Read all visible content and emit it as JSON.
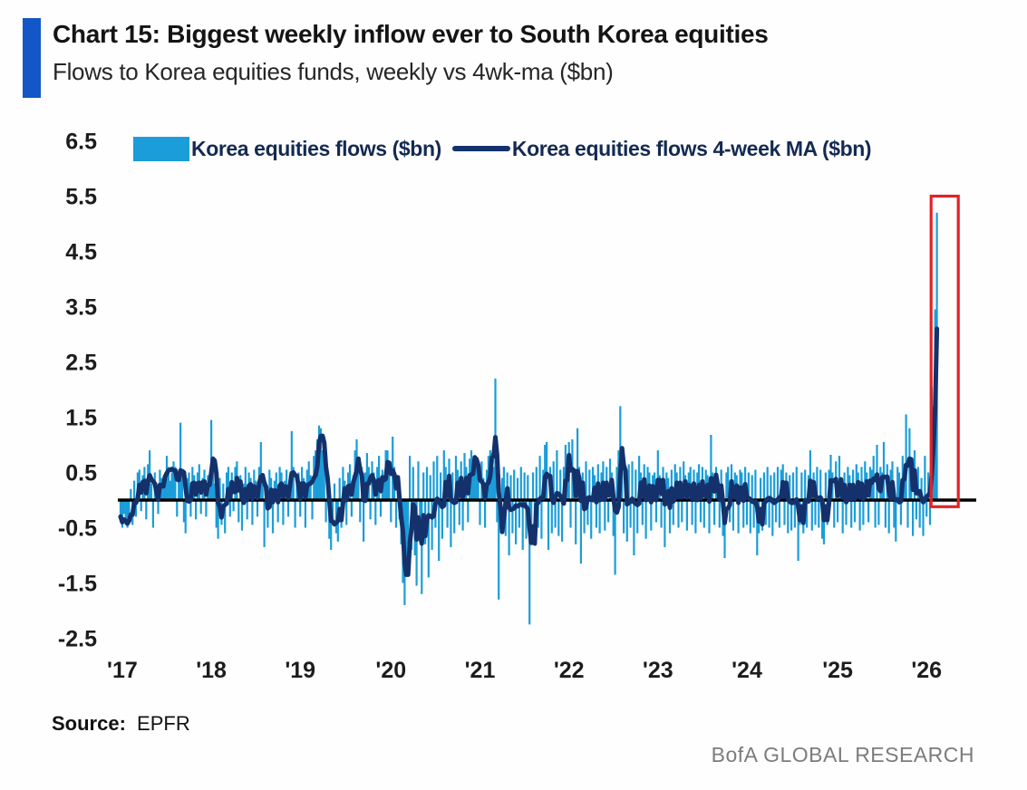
{
  "header": {
    "title": "Chart 15: Biggest weekly inflow ever to South Korea equities",
    "subtitle": "Flows to Korea equities funds, weekly vs 4wk-ma ($bn)"
  },
  "source": {
    "label": "Source:",
    "value": "EPFR"
  },
  "footer": {
    "brand": "BofA GLOBAL RESEARCH"
  },
  "colors": {
    "accent_bar": "#1157c8",
    "bar_series": "#1b9dd9",
    "ma_line": "#14316b",
    "zero_line": "#000000",
    "highlight_box": "#e32227",
    "axis_text": "#1c1c1c",
    "footer_text": "#7c7c7c"
  },
  "chart_data": {
    "type": "bar",
    "subtype": "weekly bars with 4-week moving-average line overlay",
    "title": "Chart 15: Biggest weekly inflow ever to South Korea equities",
    "subtitle": "Flows to Korea equities funds, weekly vs 4wk-ma ($bn)",
    "xlabel": "",
    "ylabel": "$bn",
    "grid": false,
    "legend_position": "top-left-inside",
    "y_ticks": [
      6.5,
      5.5,
      4.5,
      3.5,
      2.5,
      1.5,
      0.5,
      -0.5,
      -1.5,
      -2.5
    ],
    "y_domain": [
      -2.9,
      6.9
    ],
    "x_tick_labels": [
      "'17",
      "'18",
      "'19",
      "'20",
      "'21",
      "'22",
      "'23",
      "'24",
      "'25",
      "'26"
    ],
    "x_tick_week_indices": [
      1,
      53,
      105,
      158,
      210,
      262,
      314,
      366,
      419,
      471
    ],
    "x_domain_weeks": [
      0,
      500
    ],
    "highlight_box": {
      "note": "red rectangle marking the record 2026 inflow spike",
      "color": "#e32227",
      "x_start_week": 473.6,
      "x_end_week": 489.5,
      "y_min": -0.12,
      "y_max": 5.5
    },
    "series": [
      {
        "name": "Korea equities flows ($bn)",
        "type": "bar",
        "color": "#1b9dd9",
        "frequency": "weekly",
        "values_by_year": [
          {
            "year": 2017,
            "values": [
              -0.3,
              -0.5,
              -0.25,
              -0.45,
              -0.5,
              -0.3,
              0.2,
              -0.45,
              0.35,
              -0.3,
              0.5,
              0.55,
              -0.2,
              0.45,
              0.6,
              -0.35,
              0.65,
              0.9,
              0.3,
              -0.5,
              0.5,
              0.3,
              -0.25,
              0.55,
              0.4,
              0.3,
              0.45,
              0.8,
              0.6,
              0.35,
              0.5,
              0.7,
              0.6,
              -0.3,
              0.45,
              1.4,
              0.55,
              -0.4,
              -0.6,
              0.4,
              0.5,
              -0.3,
              0.6,
              0.45,
              -0.35,
              0.5,
              0.65,
              -0.25,
              0.4,
              0.55,
              -0.3,
              0.45
            ]
          },
          {
            "year": 2018,
            "values": [
              0.4,
              1.45,
              0.7,
              0.3,
              -0.5,
              -0.7,
              0.4,
              -0.45,
              0.3,
              -0.6,
              0.5,
              0.6,
              -0.3,
              0.5,
              -0.2,
              0.6,
              0.7,
              -0.4,
              0.45,
              -0.55,
              0.3,
              0.6,
              -0.35,
              0.5,
              0.4,
              -0.45,
              0.55,
              0.35,
              -0.3,
              0.6,
              1.05,
              0.45,
              -0.85,
              0.3,
              -0.5,
              0.55,
              0.4,
              -0.6,
              0.35,
              0.5,
              -0.4,
              0.6,
              0.5,
              -0.45,
              0.35,
              0.55,
              -0.3,
              0.45,
              1.25,
              0.6,
              -0.5,
              0.4
            ]
          },
          {
            "year": 2019,
            "values": [
              0.5,
              -0.3,
              0.6,
              0.4,
              -0.5,
              0.55,
              0.7,
              0.45,
              -0.35,
              0.8,
              0.9,
              1.1,
              1.35,
              1.3,
              0.9,
              0.6,
              -0.4,
              0.5,
              -0.7,
              -0.9,
              -0.45,
              0.3,
              -0.6,
              -0.75,
              0.4,
              -0.5,
              0.6,
              0.35,
              -0.45,
              0.5,
              0.65,
              -0.3,
              0.45,
              0.9,
              1.1,
              0.55,
              -0.4,
              0.6,
              -0.75,
              0.5,
              0.85,
              0.6,
              -0.35,
              0.7,
              0.5,
              -0.45,
              0.6,
              0.8,
              -0.3,
              0.55,
              0.4,
              0.9
            ]
          },
          {
            "year": 2020,
            "values": [
              0.9,
              0.5,
              -0.4,
              1.15,
              0.6,
              -0.5,
              0.4,
              -0.35,
              -0.8,
              -1.5,
              -1.9,
              -1.2,
              -0.8,
              0.8,
              -0.9,
              0.6,
              -1.0,
              -1.55,
              0.7,
              -0.6,
              -1.7,
              0.5,
              -0.8,
              0.6,
              -1.4,
              0.45,
              -0.9,
              0.7,
              -0.5,
              0.8,
              -1.1,
              0.5,
              -0.7,
              0.9,
              0.6,
              -0.5,
              0.75,
              -0.85,
              0.5,
              -0.6,
              0.8,
              0.55,
              -0.45,
              0.7,
              -0.55,
              0.85,
              0.6,
              -0.4,
              0.75,
              0.9,
              0.65,
              0.8
            ]
          },
          {
            "year": 2021,
            "values": [
              0.6,
              0.5,
              -0.45,
              0.7,
              0.4,
              -0.5,
              0.55,
              0.8,
              0.9,
              0.85,
              0.6,
              2.2,
              -0.4,
              -1.8,
              -0.5,
              0.4,
              0.6,
              -0.65,
              0.5,
              -1.0,
              0.45,
              -0.6,
              0.55,
              -0.8,
              0.4,
              -0.5,
              0.6,
              -0.9,
              0.5,
              -0.7,
              0.45,
              -2.25,
              -0.6,
              0.5,
              -0.8,
              0.6,
              -0.5,
              0.8,
              -0.7,
              0.55,
              1.0,
              1.05,
              -0.9,
              0.6,
              -0.6,
              0.7,
              -0.5,
              0.9,
              -0.65,
              0.55,
              -0.75,
              0.6
            ]
          },
          {
            "year": 2022,
            "values": [
              1.0,
              0.6,
              1.05,
              -0.5,
              1.1,
              0.5,
              -0.8,
              1.3,
              0.6,
              -1.15,
              0.5,
              -0.6,
              0.7,
              -0.45,
              0.55,
              -0.7,
              0.6,
              0.45,
              -0.5,
              0.65,
              -0.6,
              0.5,
              0.7,
              -0.55,
              0.6,
              -0.4,
              0.75,
              0.5,
              -0.65,
              -1.35,
              0.6,
              0.9,
              1.7,
              0.55,
              -0.6,
              0.5,
              -0.75,
              0.65,
              -0.5,
              0.7,
              -1.0,
              0.55,
              -0.6,
              0.8,
              0.5,
              -0.45,
              0.65,
              -0.7,
              0.6,
              0.5,
              -0.55,
              0.45
            ]
          },
          {
            "year": 2023,
            "values": [
              0.5,
              -0.4,
              0.9,
              0.45,
              -0.5,
              0.6,
              -0.85,
              0.5,
              0.4,
              -0.6,
              0.55,
              -0.45,
              0.65,
              0.5,
              -0.5,
              0.6,
              -0.4,
              0.7,
              0.45,
              -0.55,
              0.5,
              0.6,
              -0.45,
              0.55,
              -0.6,
              0.5,
              0.65,
              -0.4,
              0.6,
              -0.5,
              0.55,
              0.45,
              -0.6,
              1.18,
              0.5,
              -0.45,
              0.6,
              0.4,
              -0.5,
              0.55,
              -0.65,
              -1.05,
              0.5,
              0.6,
              -0.4,
              0.65,
              -0.55,
              0.5,
              0.45,
              -0.6,
              0.55,
              0.5
            ]
          },
          {
            "year": 2024,
            "values": [
              -0.5,
              0.6,
              -0.45,
              0.5,
              -0.6,
              0.45,
              -0.5,
              0.55,
              -1.0,
              -0.6,
              0.4,
              -0.55,
              0.5,
              -0.45,
              0.6,
              -0.5,
              0.45,
              -0.65,
              0.5,
              -0.4,
              0.6,
              -0.5,
              0.55,
              0.65,
              -0.45,
              0.5,
              -0.6,
              0.45,
              -0.55,
              0.5,
              -0.5,
              0.6,
              -1.1,
              -0.45,
              0.5,
              -0.6,
              0.55,
              -0.5,
              0.45,
              0.9,
              -0.55,
              0.5,
              -0.45,
              0.6,
              -0.5,
              0.55,
              -0.7,
              -0.8,
              0.5,
              -0.45,
              0.55,
              0.82
            ]
          },
          {
            "year": 2025,
            "values": [
              0.5,
              -0.5,
              0.7,
              -0.4,
              0.8,
              0.4,
              -0.6,
              0.5,
              -0.45,
              0.6,
              0.45,
              -0.5,
              0.55,
              -0.4,
              0.65,
              0.5,
              -0.55,
              0.6,
              -0.45,
              0.7,
              0.5,
              -0.4,
              0.6,
              0.55,
              0.8,
              -0.5,
              1.0,
              -0.45,
              0.6,
              0.5,
              1.05,
              -0.5,
              0.65,
              -0.6,
              0.55,
              0.7,
              -0.5,
              -0.75,
              0.6,
              0.5,
              -0.45,
              0.8,
              0.65,
              1.55,
              -0.5,
              1.3,
              0.6,
              -0.65,
              0.9,
              -0.35,
              0.6,
              -0.5
            ]
          },
          {
            "year": 2026,
            "values": [
              0.4,
              -0.65,
              0.8,
              -0.3,
              0.5,
              -0.45,
              2.05,
              1.7,
              3.45,
              5.2
            ]
          }
        ]
      },
      {
        "name": "Korea equities flows 4-week MA ($bn)",
        "type": "line",
        "color": "#14316b",
        "derived_from": "Korea equities flows ($bn)",
        "ma_window": 4,
        "peak_value": 3.1
      }
    ],
    "annotations": {
      "record_weekly_inflow": 5.2,
      "record_ma_value": 3.1
    }
  }
}
